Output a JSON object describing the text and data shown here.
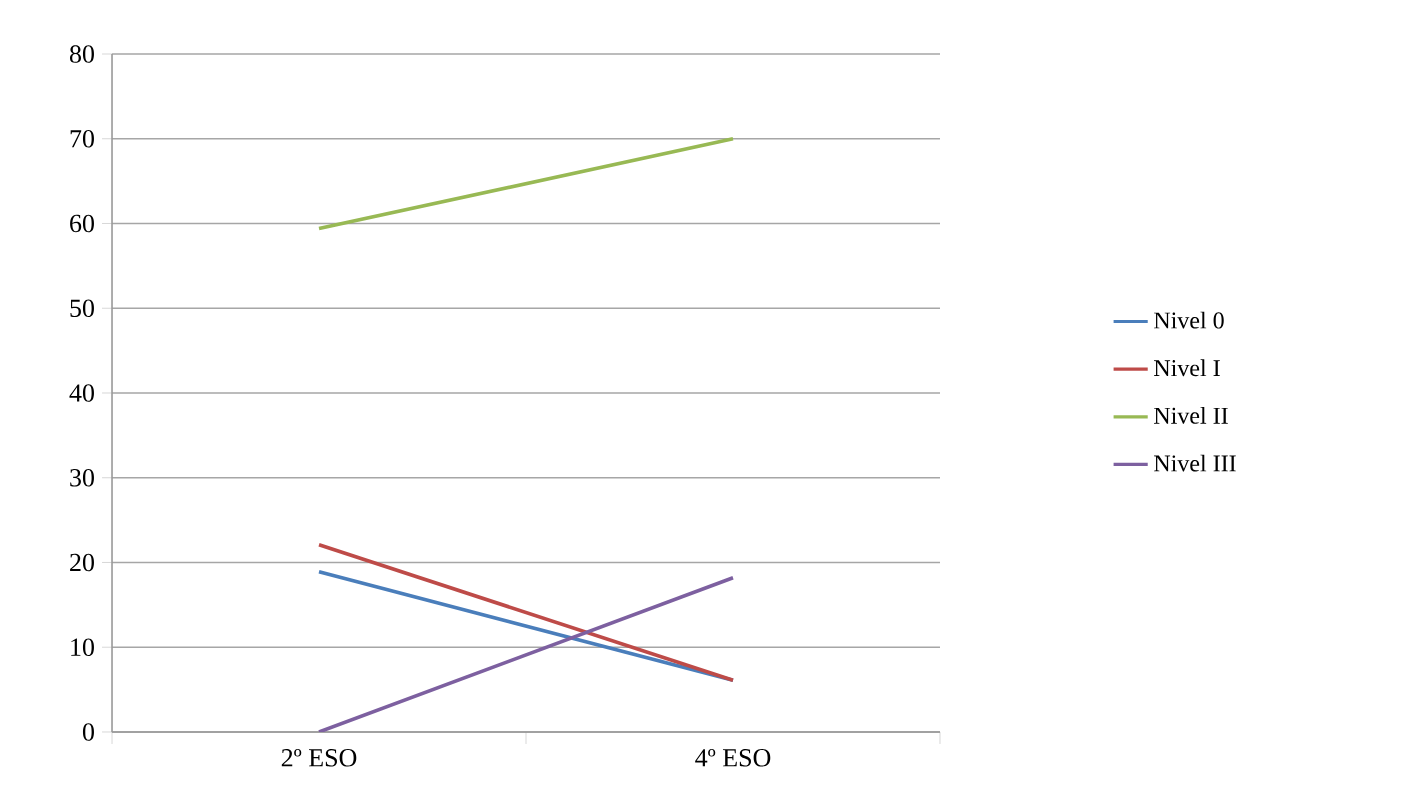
{
  "chart_data": {
    "type": "line",
    "categories": [
      "2º ESO",
      "4º ESO"
    ],
    "series": [
      {
        "name": "Nivel 0",
        "color": "#4a7ebb",
        "values": [
          18.9,
          6.1
        ]
      },
      {
        "name": "Nivel I",
        "color": "#be4b48",
        "values": [
          22.1,
          6.1
        ]
      },
      {
        "name": "Nivel II",
        "color": "#98b954",
        "values": [
          59.4,
          70
        ]
      },
      {
        "name": "Nivel III",
        "color": "#7d60a0",
        "values": [
          0,
          18.2
        ]
      }
    ],
    "ylim": [
      0,
      80
    ],
    "yticks": [
      0,
      10,
      20,
      30,
      40,
      50,
      60,
      70,
      80
    ],
    "grid": "y",
    "legend": "right",
    "marker": "none",
    "line_style": "solid"
  }
}
